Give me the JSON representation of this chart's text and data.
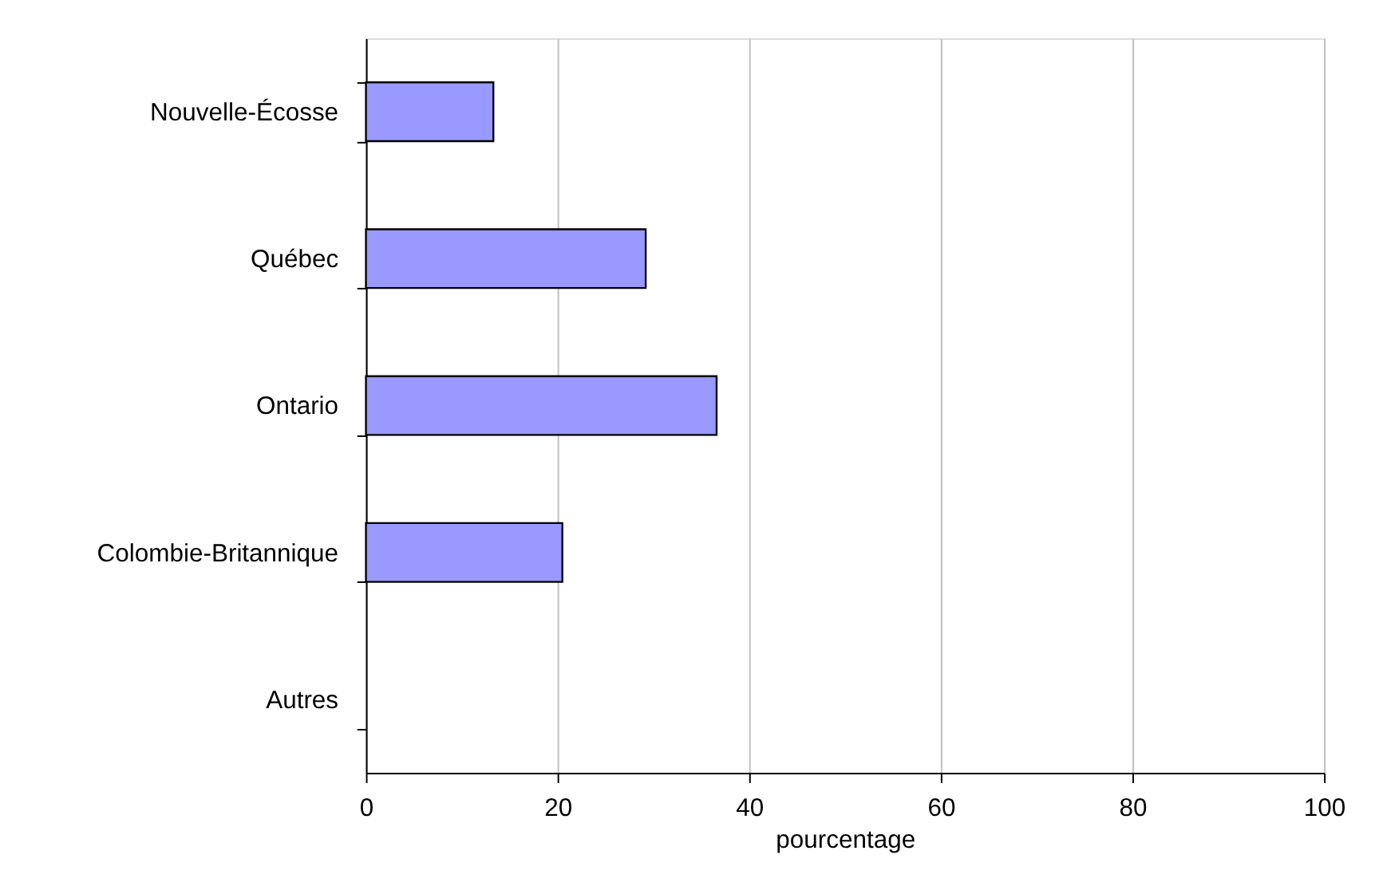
{
  "chart_data": {
    "type": "bar",
    "orientation": "horizontal",
    "xlabel": "pourcentage",
    "categories": [
      "Nouvelle-Écosse",
      "Québec",
      "Ontario",
      "Colombie-Britannique",
      "Autres"
    ],
    "values": [
      13.3,
      29.2,
      36.6,
      20.5,
      null
    ],
    "color": "#9999ff",
    "xlim": [
      0,
      100
    ],
    "xticks": [
      0,
      20,
      40,
      60,
      80,
      100
    ],
    "grid": "x"
  }
}
